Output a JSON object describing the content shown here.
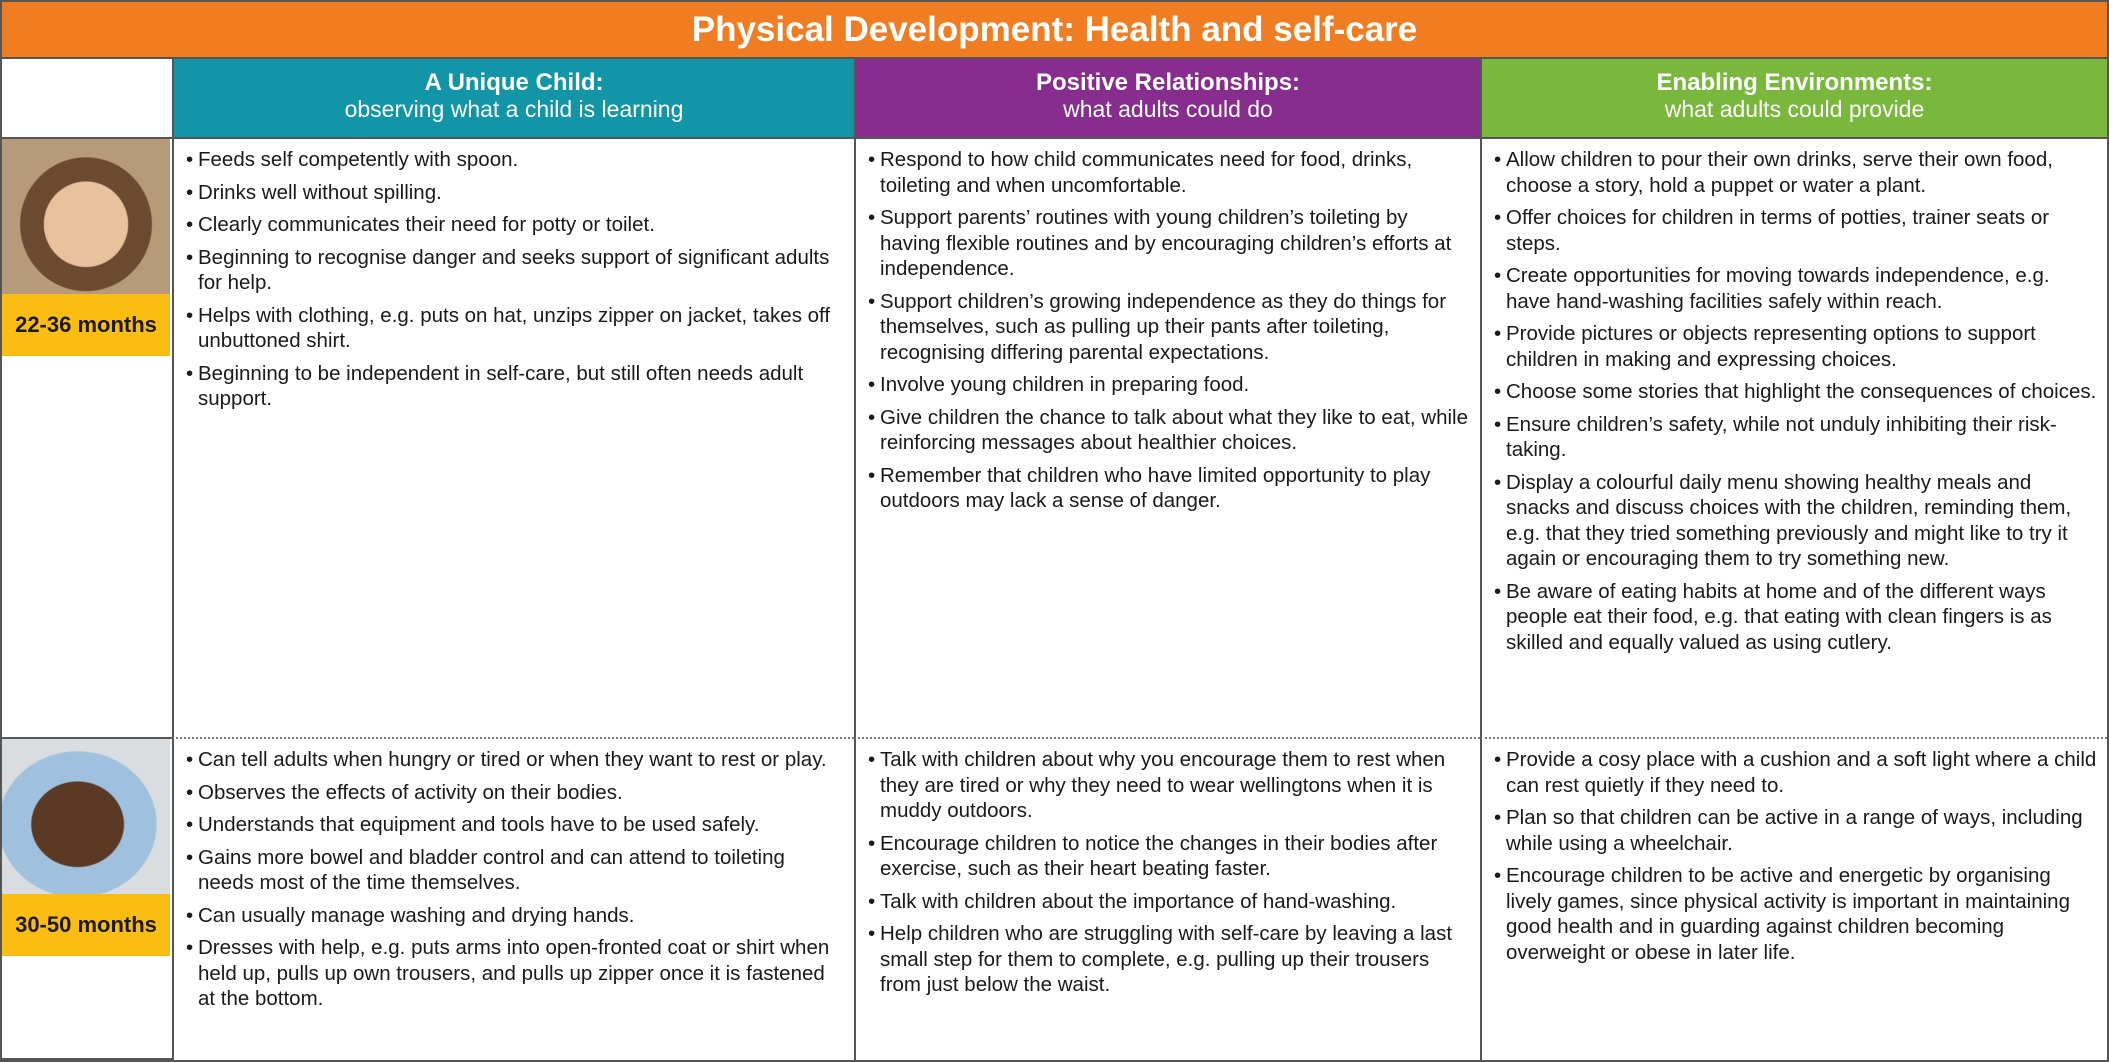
{
  "header": {
    "title": "Physical Development: Health and self-care"
  },
  "columns": [
    {
      "title": "A Unique Child:",
      "subtitle": "observing what a child is learning"
    },
    {
      "title": "Positive Relationships:",
      "subtitle": "what adults could do"
    },
    {
      "title": "Enabling Environments:",
      "subtitle": "what adults could provide"
    }
  ],
  "rows": [
    {
      "age": "22-36 months",
      "cells": [
        [
          "Feeds self competently with spoon.",
          "Drinks well without spilling.",
          "Clearly communicates their need for potty or toilet.",
          "Beginning to recognise danger and seeks support of significant adults for help.",
          "Helps with clothing, e.g. puts on hat, unzips zipper on jacket, takes off unbuttoned shirt.",
          "Beginning to be independent in self-care, but still often needs adult support."
        ],
        [
          "Respond to how child communicates need for food, drinks, toileting and when uncomfortable.",
          "Support parents’ routines with young children’s toileting by having flexible routines and by encouraging children’s efforts at independence.",
          "Support children’s growing independence as they do things for themselves, such as pulling up their pants after toileting, recognising differing parental expectations.",
          "Involve young children in preparing food.",
          "Give children the chance to talk about what they like to eat, while reinforcing messages about healthier choices.",
          "Remember that children who have limited opportunity to play outdoors may lack a sense of danger."
        ],
        [
          "Allow children to pour their own drinks, serve their own food, choose a story, hold a puppet or water a plant.",
          "Offer choices for children in terms of potties, trainer seats or steps.",
          "Create opportunities for moving towards independence, e.g. have hand-washing facilities safely within reach.",
          "Provide pictures or objects representing options to support children in making and expressing choices.",
          "Choose some stories that highlight the consequences of choices.",
          "Ensure children’s safety, while not unduly inhibiting their risk-taking.",
          "Display a colourful daily menu showing healthy meals and snacks and discuss choices with the children, reminding them, e.g. that they tried something previously and might like to try it again or encouraging them to try something new.",
          "Be aware of eating habits at home and of the different ways people eat their food, e.g. that eating with clean fingers is as skilled and equally valued as using cutlery."
        ]
      ]
    },
    {
      "age": "30-50 months",
      "cells": [
        [
          "Can tell adults when hungry or tired or when they want to rest or play.",
          "Observes the effects of activity on their bodies.",
          "Understands that equipment and tools have to be used safely.",
          "Gains more bowel and bladder control and can attend to toileting needs most of the time themselves.",
          "Can usually manage washing and drying hands.",
          "Dresses with help, e.g. puts arms into open-fronted coat or shirt when held up, pulls up own trousers, and pulls up zipper once it is fastened at the bottom."
        ],
        [
          "Talk with children about why you encourage them to rest when they are tired or why they need to wear wellingtons when it is muddy outdoors.",
          "Encourage children to notice the changes in their bodies after exercise, such as their heart beating faster.",
          "Talk with children about the importance of hand-washing.",
          "Help children who are struggling with self-care by leaving a last small step for them to complete, e.g. pulling up their trousers from just below the waist."
        ],
        [
          "Provide a cosy place with a cushion and a soft light where a child can rest quietly if they need to.",
          "Plan so that children can be active in a range of ways, including while using a wheelchair.",
          "Encourage children to be active and energetic by organising lively games, since physical activity is important in maintaining good health and in guarding against children becoming overweight or obese in later life."
        ]
      ]
    }
  ]
}
